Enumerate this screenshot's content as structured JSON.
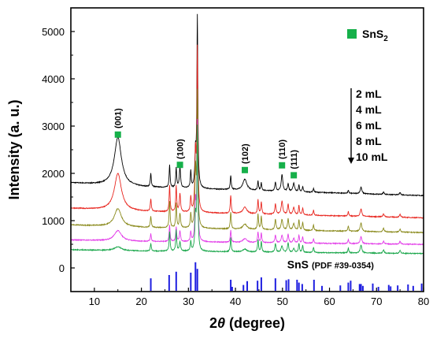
{
  "chart_data": {
    "type": "line",
    "xlabel": "2θ (degree)",
    "xlabel_theta": "θ",
    "xlabel_suffix": " (degree)",
    "xlabel_prefix": "2",
    "ylabel": "Intensity (a. u.)",
    "xlim": [
      5,
      80
    ],
    "ylim": [
      -500,
      5500
    ],
    "x_ticks": [
      10,
      20,
      30,
      40,
      50,
      60,
      70,
      80
    ],
    "y_ticks": [
      0,
      1000,
      2000,
      3000,
      4000,
      5000
    ],
    "legend_position": "top-right",
    "legend_marker_label": "SnS",
    "legend_marker_sub": "2",
    "marker_color": "#16b04a",
    "series": [
      {
        "name": "2 mL",
        "color": "#000000",
        "baseline": 1650,
        "scale": 1.0
      },
      {
        "name": "4 mL",
        "color": "#e8261f",
        "baseline": 1150,
        "scale": 0.75
      },
      {
        "name": "6 mL",
        "color": "#8a8a1c",
        "baseline": 820,
        "scale": 0.6
      },
      {
        "name": "8 mL",
        "color": "#e23ae8",
        "baseline": 540,
        "scale": 0.35
      },
      {
        "name": "10 mL",
        "color": "#19a64a",
        "baseline": 340,
        "scale": 0.3
      }
    ],
    "peaks": [
      {
        "x": 15.0,
        "w": 0.9,
        "h": [
          1020,
          780,
          380,
          220,
          80
        ]
      },
      {
        "x": 22.0,
        "w": 0.12,
        "h": [
          280,
          260,
          240,
          160,
          160
        ]
      },
      {
        "x": 26.0,
        "w": 0.12,
        "h": [
          480,
          550,
          560,
          340,
          420
        ]
      },
      {
        "x": 27.4,
        "w": 0.12,
        "h": [
          420,
          540,
          520,
          300,
          440
        ]
      },
      {
        "x": 28.2,
        "w": 0.15,
        "h": [
          440,
          380,
          300,
          220,
          200
        ]
      },
      {
        "x": 30.5,
        "w": 0.12,
        "h": [
          350,
          320,
          300,
          200,
          200
        ]
      },
      {
        "x": 31.5,
        "w": 0.15,
        "h": [
          700,
          1200,
          1200,
          800,
          700
        ]
      },
      {
        "x": 31.9,
        "w": 0.12,
        "h": [
          3600,
          3400,
          2800,
          2500,
          2600
        ]
      },
      {
        "x": 39.0,
        "w": 0.12,
        "h": [
          300,
          380,
          360,
          250,
          300
        ]
      },
      {
        "x": 42.0,
        "w": 0.5,
        "h": [
          230,
          140,
          110,
          80,
          60
        ]
      },
      {
        "x": 44.8,
        "w": 0.12,
        "h": [
          200,
          300,
          320,
          220,
          260
        ]
      },
      {
        "x": 45.5,
        "w": 0.12,
        "h": [
          160,
          250,
          280,
          200,
          220
        ]
      },
      {
        "x": 48.5,
        "w": 0.15,
        "h": [
          180,
          220,
          220,
          160,
          180
        ]
      },
      {
        "x": 49.9,
        "w": 0.2,
        "h": [
          350,
          280,
          220,
          160,
          140
        ]
      },
      {
        "x": 51.2,
        "w": 0.15,
        "h": [
          160,
          220,
          240,
          180,
          200
        ]
      },
      {
        "x": 52.4,
        "w": 0.2,
        "h": [
          180,
          160,
          140,
          100,
          80
        ]
      },
      {
        "x": 53.5,
        "w": 0.12,
        "h": [
          140,
          200,
          220,
          170,
          190
        ]
      },
      {
        "x": 54.3,
        "w": 0.12,
        "h": [
          110,
          150,
          170,
          130,
          150
        ]
      },
      {
        "x": 56.6,
        "w": 0.12,
        "h": [
          80,
          110,
          120,
          90,
          110
        ]
      },
      {
        "x": 64.0,
        "w": 0.12,
        "h": [
          60,
          100,
          110,
          90,
          100
        ]
      },
      {
        "x": 66.7,
        "w": 0.2,
        "h": [
          140,
          160,
          180,
          150,
          170
        ]
      },
      {
        "x": 71.5,
        "w": 0.15,
        "h": [
          50,
          70,
          80,
          60,
          70
        ]
      },
      {
        "x": 75.0,
        "w": 0.15,
        "h": [
          50,
          60,
          70,
          60,
          60
        ]
      }
    ],
    "annotations": [
      {
        "label": "(001)",
        "x": 15.0,
        "y_marker": 2820,
        "y_text": 2950
      },
      {
        "label": "(100)",
        "x": 28.2,
        "y_marker": 2180,
        "y_text": 2300
      },
      {
        "label": "(102)",
        "x": 42.0,
        "y_marker": 2070,
        "y_text": 2200
      },
      {
        "label": "(110)",
        "x": 49.9,
        "y_marker": 2170,
        "y_text": 2300
      },
      {
        "label": "(111)",
        "x": 52.4,
        "y_marker": 1960,
        "y_text": 2090
      }
    ],
    "reference": {
      "label": "SnS",
      "sublabel": "(PDF #39-0354)",
      "color": "#1f1fe0",
      "lines": [
        {
          "x": 22.0,
          "h": 280
        },
        {
          "x": 25.9,
          "h": 350
        },
        {
          "x": 27.4,
          "h": 420
        },
        {
          "x": 30.5,
          "h": 400
        },
        {
          "x": 31.5,
          "h": 620
        },
        {
          "x": 31.9,
          "h": 480
        },
        {
          "x": 39.0,
          "h": 250
        },
        {
          "x": 39.3,
          "h": 100
        },
        {
          "x": 41.7,
          "h": 140
        },
        {
          "x": 42.5,
          "h": 220
        },
        {
          "x": 44.7,
          "h": 230
        },
        {
          "x": 45.5,
          "h": 300
        },
        {
          "x": 48.5,
          "h": 280
        },
        {
          "x": 50.8,
          "h": 240
        },
        {
          "x": 51.3,
          "h": 260
        },
        {
          "x": 53.1,
          "h": 250
        },
        {
          "x": 53.5,
          "h": 190
        },
        {
          "x": 54.2,
          "h": 160
        },
        {
          "x": 56.7,
          "h": 250
        },
        {
          "x": 58.4,
          "h": 120
        },
        {
          "x": 62.3,
          "h": 130
        },
        {
          "x": 64.0,
          "h": 190
        },
        {
          "x": 64.5,
          "h": 230
        },
        {
          "x": 66.4,
          "h": 160
        },
        {
          "x": 66.7,
          "h": 160
        },
        {
          "x": 67.1,
          "h": 120
        },
        {
          "x": 69.2,
          "h": 170
        },
        {
          "x": 70.4,
          "h": 100
        },
        {
          "x": 72.6,
          "h": 140
        },
        {
          "x": 73.0,
          "h": 110
        },
        {
          "x": 74.5,
          "h": 130
        },
        {
          "x": 76.7,
          "h": 150
        },
        {
          "x": 77.8,
          "h": 120
        },
        {
          "x": 79.6,
          "h": 170
        }
      ]
    }
  }
}
